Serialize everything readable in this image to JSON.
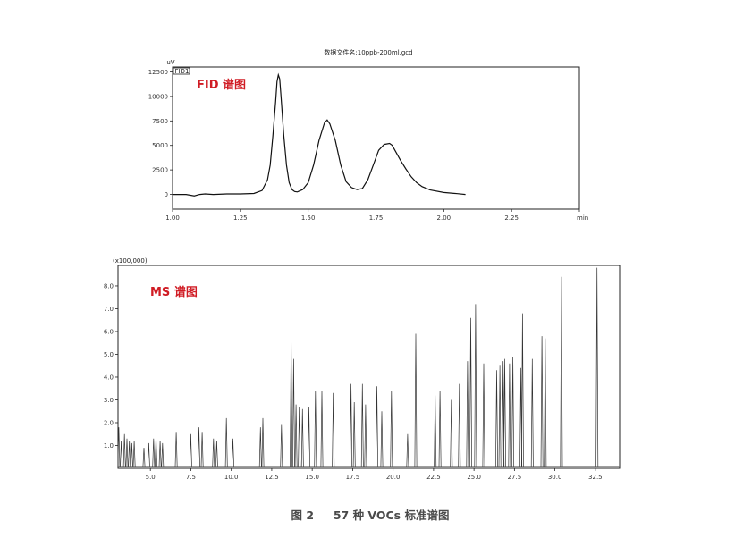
{
  "caption": "图 2     57 种 VOCs 标准谱图",
  "chart_data": [
    {
      "type": "line",
      "title": "数据文件名:10ppb-200ml.gcd",
      "tag": "FID 谱图",
      "ylabel_unit": "uV",
      "legend_box": "FID1",
      "xlabel_unit": "min",
      "xlim": [
        1.0,
        2.5
      ],
      "ylim": [
        -1500,
        13000
      ],
      "x_ticks": [
        "1.00",
        "1.25",
        "1.50",
        "1.75",
        "2.00",
        "2.25",
        "2.50"
      ],
      "x_tick_values": [
        1.0,
        1.25,
        1.5,
        1.75,
        2.0,
        2.25,
        2.5
      ],
      "y_ticks": [
        "12500",
        "10000",
        "7500",
        "5000",
        "2500",
        "0"
      ],
      "y_tick_values": [
        12500,
        10000,
        7500,
        5000,
        2500,
        0
      ],
      "series": [
        {
          "x": [
            1.0,
            1.05,
            1.08,
            1.1,
            1.12,
            1.15,
            1.2,
            1.25,
            1.3,
            1.33,
            1.35,
            1.36,
            1.37,
            1.38,
            1.385,
            1.39,
            1.395,
            1.4,
            1.41,
            1.42,
            1.43,
            1.44,
            1.45,
            1.46,
            1.48,
            1.5,
            1.52,
            1.54,
            1.56,
            1.57,
            1.58,
            1.6,
            1.62,
            1.64,
            1.66,
            1.68,
            1.7,
            1.72,
            1.74,
            1.76,
            1.78,
            1.8,
            1.81,
            1.82,
            1.84,
            1.86,
            1.88,
            1.9,
            1.92,
            1.95,
            2.0,
            2.05,
            2.08
          ],
          "y": [
            0,
            0,
            -150,
            0,
            50,
            0,
            50,
            50,
            100,
            400,
            1500,
            3000,
            6000,
            9500,
            11500,
            12200,
            11800,
            10000,
            6000,
            3000,
            1200,
            500,
            300,
            250,
            500,
            1200,
            3000,
            5500,
            7300,
            7600,
            7200,
            5500,
            3000,
            1300,
            700,
            500,
            600,
            1500,
            3000,
            4500,
            5100,
            5200,
            5000,
            4500,
            3500,
            2600,
            1800,
            1200,
            800,
            450,
            200,
            80,
            0
          ]
        }
      ]
    },
    {
      "type": "line",
      "tag": "MS 谱图",
      "y_multiplier": "(x100,000)",
      "xlim": [
        3.0,
        34.0
      ],
      "ylim": [
        0,
        8.9
      ],
      "x_ticks": [
        "5.0",
        "7.5",
        "10.0",
        "12.5",
        "15.0",
        "17.5",
        "20.0",
        "22.5",
        "25.0",
        "27.5",
        "30.0",
        "32.5"
      ],
      "x_tick_values": [
        5.0,
        7.5,
        10.0,
        12.5,
        15.0,
        17.5,
        20.0,
        22.5,
        25.0,
        27.5,
        30.0,
        32.5
      ],
      "y_ticks": [
        "1.0",
        "2.0",
        "3.0",
        "4.0",
        "5.0",
        "6.0",
        "7.0",
        "8.0"
      ],
      "y_tick_values": [
        1.0,
        2.0,
        3.0,
        4.0,
        5.0,
        6.0,
        7.0,
        8.0
      ],
      "peaks": {
        "rt": [
          3.05,
          3.2,
          3.4,
          3.55,
          3.7,
          3.85,
          4.0,
          4.6,
          4.9,
          5.2,
          5.35,
          5.6,
          5.75,
          6.6,
          7.5,
          8.0,
          8.2,
          8.9,
          9.1,
          9.7,
          10.1,
          11.8,
          11.95,
          13.1,
          13.7,
          13.85,
          14.0,
          14.2,
          14.4,
          14.8,
          15.2,
          15.6,
          16.3,
          17.4,
          17.6,
          18.1,
          18.3,
          19.0,
          19.3,
          19.9,
          20.9,
          21.4,
          22.6,
          22.9,
          23.6,
          24.1,
          24.6,
          24.8,
          25.1,
          25.6,
          26.4,
          26.6,
          26.8,
          26.9,
          27.2,
          27.4,
          27.9,
          28.0,
          28.6,
          29.2,
          29.4,
          30.4,
          32.6
        ],
        "h": [
          1.8,
          1.2,
          1.5,
          1.3,
          1.2,
          1.1,
          1.2,
          0.9,
          1.1,
          1.3,
          1.4,
          1.2,
          1.1,
          1.6,
          1.5,
          1.8,
          1.6,
          1.3,
          1.2,
          2.2,
          1.3,
          1.8,
          2.2,
          1.9,
          5.8,
          4.8,
          2.8,
          2.7,
          2.6,
          2.7,
          3.4,
          3.4,
          3.3,
          3.7,
          2.9,
          3.7,
          2.8,
          3.6,
          2.5,
          3.4,
          1.5,
          5.9,
          3.2,
          3.4,
          3.0,
          3.7,
          4.7,
          6.6,
          7.2,
          4.6,
          4.3,
          4.5,
          4.7,
          4.8,
          4.6,
          4.9,
          4.4,
          6.8,
          4.8,
          5.8,
          5.7,
          8.4,
          8.8
        ]
      }
    }
  ]
}
